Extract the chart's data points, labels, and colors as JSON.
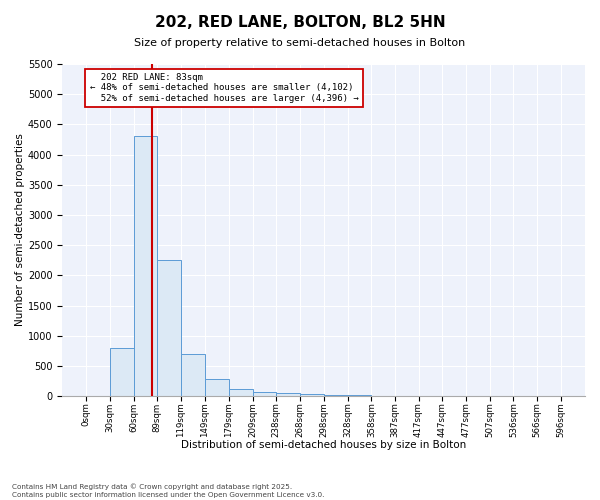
{
  "title": "202, RED LANE, BOLTON, BL2 5HN",
  "subtitle": "Size of property relative to semi-detached houses in Bolton",
  "xlabel": "Distribution of semi-detached houses by size in Bolton",
  "ylabel": "Number of semi-detached properties",
  "footer_line1": "Contains HM Land Registry data © Crown copyright and database right 2025.",
  "footer_line2": "Contains public sector information licensed under the Open Government Licence v3.0.",
  "property_size": 83,
  "property_label": "202 RED LANE: 83sqm",
  "pct_smaller": 48,
  "pct_larger": 52,
  "count_smaller": 4102,
  "count_larger": 4396,
  "bin_edges": [
    0,
    30,
    60,
    89,
    119,
    149,
    179,
    209,
    238,
    268,
    298,
    328,
    358,
    387,
    417,
    447,
    477,
    507,
    536,
    566,
    596
  ],
  "bin_labels": [
    "0sqm",
    "30sqm",
    "60sqm",
    "89sqm",
    "119sqm",
    "149sqm",
    "179sqm",
    "209sqm",
    "238sqm",
    "268sqm",
    "298sqm",
    "328sqm",
    "358sqm",
    "387sqm",
    "417sqm",
    "447sqm",
    "477sqm",
    "507sqm",
    "536sqm",
    "566sqm",
    "596sqm"
  ],
  "counts": [
    5,
    800,
    4300,
    2250,
    700,
    275,
    125,
    75,
    55,
    30,
    20,
    10,
    5,
    5,
    3,
    2,
    2,
    1,
    1,
    1
  ],
  "bar_facecolor": "#dce9f5",
  "bar_edgecolor": "#5b9bd5",
  "vline_color": "#cc0000",
  "annotation_box_edgecolor": "#cc0000",
  "background_color": "#eef2fb",
  "ylim": [
    0,
    5500
  ],
  "yticks": [
    0,
    500,
    1000,
    1500,
    2000,
    2500,
    3000,
    3500,
    4000,
    4500,
    5000,
    5500
  ]
}
